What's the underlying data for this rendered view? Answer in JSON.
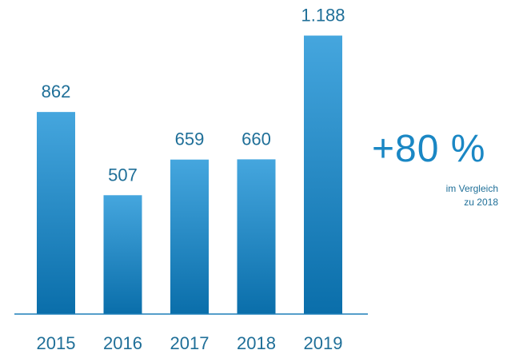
{
  "chart_data": {
    "type": "bar",
    "categories": [
      "2015",
      "2016",
      "2017",
      "2018",
      "2019"
    ],
    "values": [
      862,
      507,
      659,
      660,
      1188
    ],
    "value_labels": [
      "862",
      "507",
      "659",
      "660",
      "1.188"
    ],
    "ylim": [
      0,
      1200
    ],
    "grid": false,
    "bar_gradient": [
      "#45a6de",
      "#0a6eaa"
    ]
  },
  "callout": {
    "main": "+80 %",
    "sub_line1": "im Vergleich",
    "sub_line2": "zu 2018",
    "color": "#1a87c4"
  }
}
